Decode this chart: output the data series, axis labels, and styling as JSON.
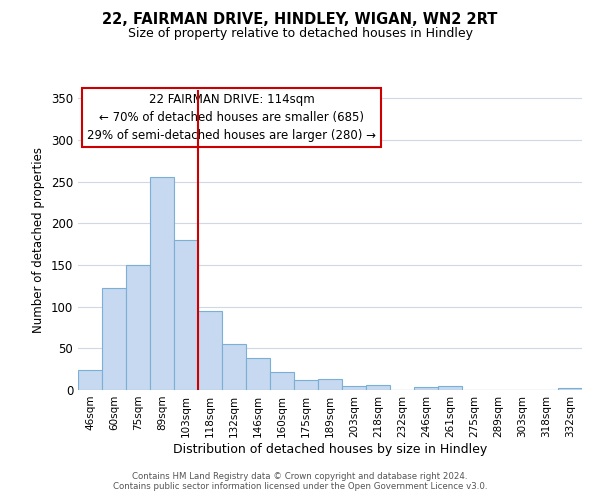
{
  "title": "22, FAIRMAN DRIVE, HINDLEY, WIGAN, WN2 2RT",
  "subtitle": "Size of property relative to detached houses in Hindley",
  "xlabel": "Distribution of detached houses by size in Hindley",
  "ylabel": "Number of detached properties",
  "bar_labels": [
    "46sqm",
    "60sqm",
    "75sqm",
    "89sqm",
    "103sqm",
    "118sqm",
    "132sqm",
    "146sqm",
    "160sqm",
    "175sqm",
    "189sqm",
    "203sqm",
    "218sqm",
    "232sqm",
    "246sqm",
    "261sqm",
    "275sqm",
    "289sqm",
    "303sqm",
    "318sqm",
    "332sqm"
  ],
  "bar_values": [
    24,
    122,
    150,
    256,
    180,
    95,
    55,
    39,
    22,
    12,
    13,
    5,
    6,
    0,
    4,
    5,
    0,
    0,
    0,
    0,
    3
  ],
  "bar_color": "#c6d9f0",
  "bar_edge_color": "#7bafd4",
  "vline_color": "#cc0000",
  "vline_x": 4.5,
  "ylim": [
    0,
    360
  ],
  "yticks": [
    0,
    50,
    100,
    150,
    200,
    250,
    300,
    350
  ],
  "annotation_title": "22 FAIRMAN DRIVE: 114sqm",
  "annotation_line1": "← 70% of detached houses are smaller (685)",
  "annotation_line2": "29% of semi-detached houses are larger (280) →",
  "footer_line1": "Contains HM Land Registry data © Crown copyright and database right 2024.",
  "footer_line2": "Contains public sector information licensed under the Open Government Licence v3.0.",
  "bg_color": "#ffffff",
  "grid_color": "#d0d8e8"
}
